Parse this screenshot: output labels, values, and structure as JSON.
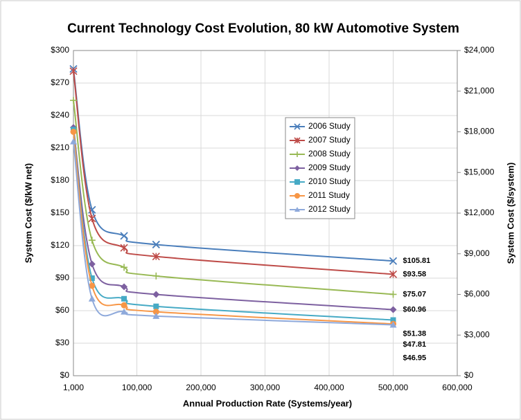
{
  "chart_data": {
    "type": "line",
    "title": "Current Technology Cost Evolution, 80 kW Automotive System",
    "x_label": "Annual Production Rate (Systems/year)",
    "y_label": "System Cost ($/kW net)",
    "y2_label": "System Cost ($/system)",
    "x": [
      1000,
      30000,
      80000,
      130000,
      500000
    ],
    "xlim": [
      1000,
      600000
    ],
    "xticks": [
      {
        "value": 1000,
        "label": "1,000"
      },
      {
        "value": 100000,
        "label": "100,000"
      },
      {
        "value": 200000,
        "label": "200,000"
      },
      {
        "value": 300000,
        "label": "300,000"
      },
      {
        "value": 400000,
        "label": "400,000"
      },
      {
        "value": 500000,
        "label": "500,000"
      },
      {
        "value": 600000,
        "label": "600,000"
      }
    ],
    "ylim": [
      0,
      300
    ],
    "yticks": [
      {
        "value": 0,
        "label": "$0"
      },
      {
        "value": 30,
        "label": "$30"
      },
      {
        "value": 60,
        "label": "$60"
      },
      {
        "value": 90,
        "label": "$90"
      },
      {
        "value": 120,
        "label": "$120"
      },
      {
        "value": 150,
        "label": "$150"
      },
      {
        "value": 180,
        "label": "$180"
      },
      {
        "value": 210,
        "label": "$210"
      },
      {
        "value": 240,
        "label": "$240"
      },
      {
        "value": 270,
        "label": "$270"
      },
      {
        "value": 300,
        "label": "$300"
      }
    ],
    "y2lim": [
      0,
      24000
    ],
    "y2ticks": [
      {
        "value": 0,
        "label": "$0"
      },
      {
        "value": 3000,
        "label": "$3,000"
      },
      {
        "value": 6000,
        "label": "$6,000"
      },
      {
        "value": 9000,
        "label": "$9,000"
      },
      {
        "value": 12000,
        "label": "$12,000"
      },
      {
        "value": 15000,
        "label": "$15,000"
      },
      {
        "value": 18000,
        "label": "$18,000"
      },
      {
        "value": 21000,
        "label": "$21,000"
      },
      {
        "value": 24000,
        "label": "$24,000"
      }
    ],
    "grid": true,
    "legend": "upper center",
    "series": [
      {
        "name": "2006 Study",
        "color": "#4a7ebb",
        "marker": "x",
        "values": [
          283,
          153,
          129,
          121,
          105.81
        ],
        "value_labels": [
          null,
          null,
          null,
          null,
          "$105.81"
        ]
      },
      {
        "name": "2007 Study",
        "color": "#be4b48",
        "marker": "star",
        "values": [
          281,
          145,
          118,
          110,
          93.58
        ],
        "value_labels": [
          null,
          null,
          null,
          null,
          "$93.58"
        ]
      },
      {
        "name": "2008 Study",
        "color": "#98b954",
        "marker": "plus",
        "values": [
          254,
          125,
          100,
          92,
          75.07
        ],
        "value_labels": [
          null,
          null,
          null,
          null,
          "$75.07"
        ]
      },
      {
        "name": "2009 Study",
        "color": "#7d60a0",
        "marker": "diamond",
        "values": [
          229,
          103,
          82,
          75,
          60.96
        ],
        "value_labels": [
          null,
          null,
          null,
          null,
          "$60.96"
        ]
      },
      {
        "name": "2010 Study",
        "color": "#46aac5",
        "marker": "square",
        "values": [
          227,
          90,
          71,
          64,
          51.38
        ],
        "value_labels": [
          null,
          null,
          null,
          null,
          "$51.38"
        ]
      },
      {
        "name": "2011 Study",
        "color": "#f79646",
        "marker": "circle",
        "values": [
          225,
          83,
          65,
          59,
          47.81
        ],
        "value_labels": [
          null,
          null,
          null,
          null,
          "$47.81"
        ]
      },
      {
        "name": "2012 Study",
        "color": "#8ea9db",
        "marker": "triangle",
        "values": [
          216,
          71,
          59,
          55,
          46.95
        ],
        "value_labels": [
          null,
          null,
          null,
          null,
          "$46.95"
        ]
      }
    ]
  }
}
